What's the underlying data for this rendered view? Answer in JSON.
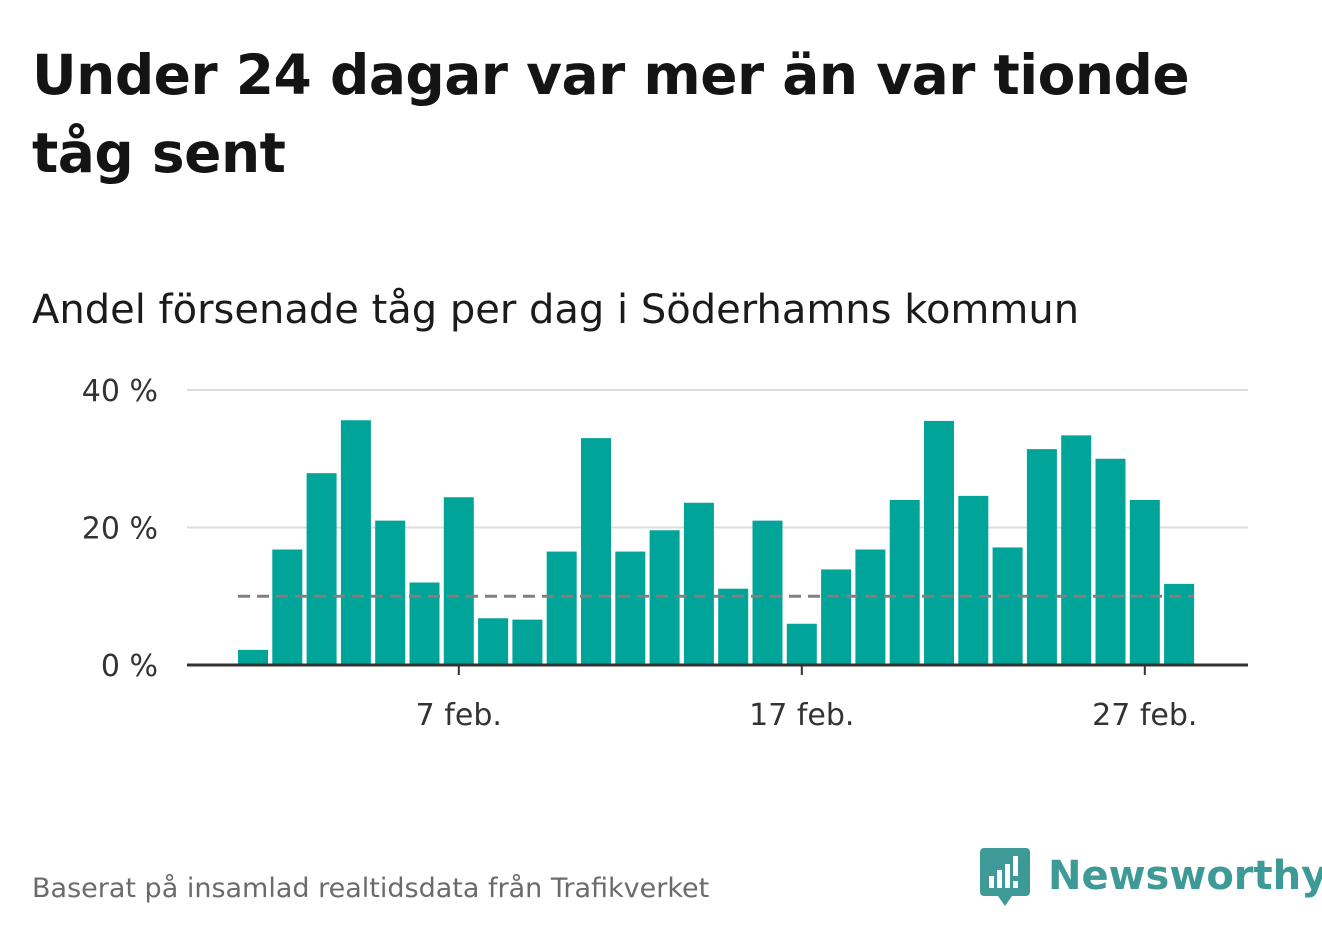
{
  "headline": "Under 24 dagar var mer än var tionde tåg sent",
  "subtitle": "Andel försenade tåg per dag i Söderhamns kommun",
  "footer": "Baserat på insamlad realtidsdata från Trafikverket",
  "brand": {
    "name": "Newsworthy",
    "icon": "newsworthy-logo-icon",
    "color": "#3d9a96"
  },
  "chart_data": {
    "type": "bar",
    "x": [
      "1 feb.",
      "2 feb.",
      "3 feb.",
      "4 feb.",
      "5 feb.",
      "6 feb.",
      "7 feb.",
      "8 feb.",
      "9 feb.",
      "10 feb.",
      "11 feb.",
      "12 feb.",
      "13 feb.",
      "14 feb.",
      "15 feb.",
      "16 feb.",
      "17 feb.",
      "18 feb.",
      "19 feb.",
      "20 feb.",
      "21 feb.",
      "22 feb.",
      "23 feb.",
      "24 feb.",
      "25 feb.",
      "26 feb.",
      "27 feb.",
      "28 feb."
    ],
    "values": [
      2.2,
      16.8,
      27.9,
      35.6,
      21.0,
      12.0,
      24.4,
      6.8,
      6.6,
      16.5,
      33.0,
      16.5,
      19.6,
      23.6,
      11.1,
      21.0,
      6.0,
      13.9,
      16.8,
      24.0,
      35.5,
      24.6,
      17.1,
      31.4,
      33.4,
      30.0,
      24.0,
      11.8
    ],
    "ylim": [
      0,
      40
    ],
    "yticks": [
      0,
      20,
      40
    ],
    "ytick_labels": [
      "0 %",
      "20 %",
      "40 %"
    ],
    "xticks": [
      "7 feb.",
      "17 feb.",
      "27 feb."
    ],
    "reference_line": 10,
    "bar_color": "#00a499",
    "reference_color": "#808080",
    "grid": true,
    "xlabel": "",
    "ylabel": ""
  }
}
